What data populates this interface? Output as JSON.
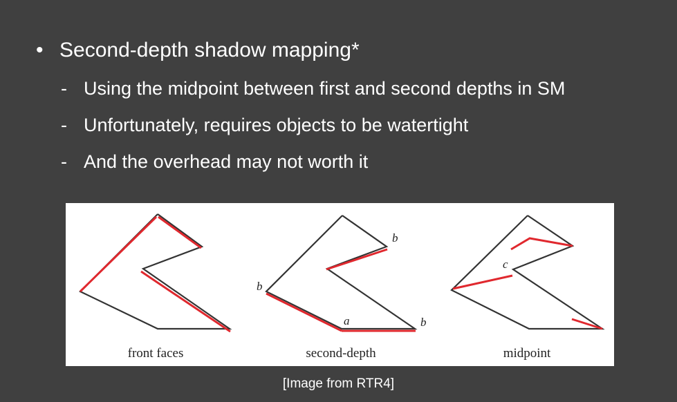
{
  "slide": {
    "bullet": {
      "marker": "•",
      "text": "Second-depth shadow mapping*"
    },
    "sub_bullets": [
      {
        "marker": "-",
        "text": "Using the midpoint between first and second depths in SM"
      },
      {
        "marker": "-",
        "text": "Unfortunately, requires objects to be watertight"
      },
      {
        "marker": "-",
        "text": "And the overhead may not worth it"
      }
    ],
    "caption": "[Image from RTR4]"
  },
  "figure": {
    "panels": [
      {
        "label": "front faces"
      },
      {
        "label": "second-depth",
        "point_labels": [
          "b",
          "b",
          "b",
          "a"
        ]
      },
      {
        "label": "midpoint",
        "point_labels": [
          "c"
        ]
      }
    ],
    "colors": {
      "outline": "#333333",
      "highlight": "#e0282e",
      "background": "#ffffff",
      "slide_background": "#404040"
    }
  }
}
